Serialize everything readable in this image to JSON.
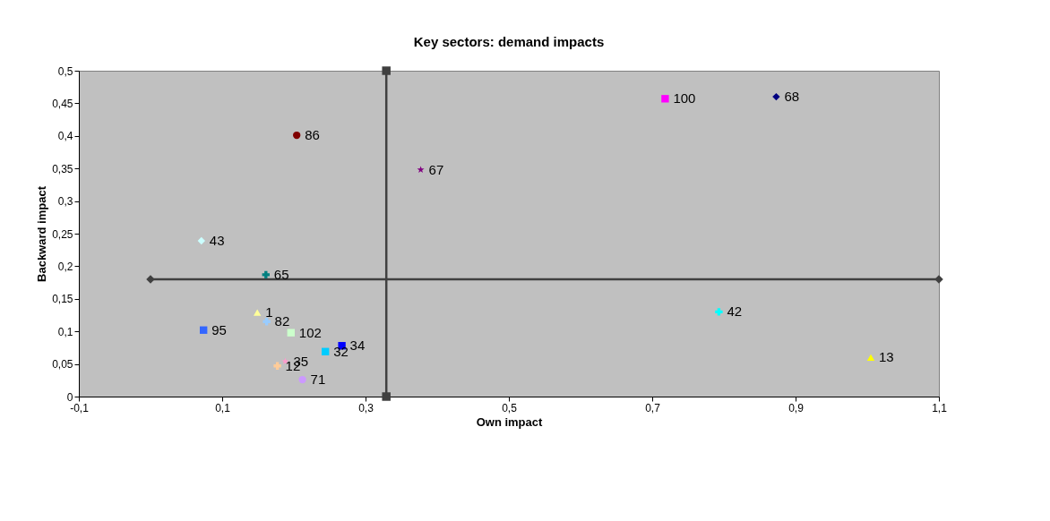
{
  "chart_data": {
    "type": "scatter",
    "title": "Key sectors: demand impacts",
    "xlabel": "Own impact",
    "ylabel": "Backward impact",
    "xlim": [
      -0.1,
      1.1
    ],
    "ylim": [
      0,
      0.5
    ],
    "xticks": [
      {
        "value": -0.1,
        "label": "-0,1"
      },
      {
        "value": 0.1,
        "label": "0,1"
      },
      {
        "value": 0.3,
        "label": "0,3"
      },
      {
        "value": 0.5,
        "label": "0,5"
      },
      {
        "value": 0.7,
        "label": "0,7"
      },
      {
        "value": 0.9,
        "label": "0,9"
      },
      {
        "value": 1.1,
        "label": "1,1"
      }
    ],
    "yticks": [
      0,
      {
        "value": 0.05,
        "label": "0,05"
      },
      {
        "value": 0.1,
        "label": "0,1"
      },
      {
        "value": 0.15,
        "label": "0,15"
      },
      {
        "value": 0.2,
        "label": "0,2"
      },
      {
        "value": 0.25,
        "label": "0,25"
      },
      {
        "value": 0.3,
        "label": "0,3"
      },
      {
        "value": 0.35,
        "label": "0,35"
      },
      {
        "value": 0.4,
        "label": "0,4"
      },
      {
        "value": 0.45,
        "label": "0,45"
      },
      {
        "value": 0.5,
        "label": "0,5"
      }
    ],
    "grid": false,
    "series": [
      {
        "type": "line",
        "x": [
          0.329,
          0.329
        ],
        "values": [
          0,
          0.5
        ],
        "color": "#404040",
        "marker": "square"
      },
      {
        "type": "line",
        "x": [
          0,
          1.1
        ],
        "values": [
          0.18,
          0.18
        ],
        "color": "#404040",
        "marker": "diamond"
      },
      {
        "name": "100",
        "x": [
          0.718
        ],
        "values": [
          0.457
        ],
        "color": "#ff00ff",
        "marker": "square"
      },
      {
        "name": "68",
        "x": [
          0.873
        ],
        "values": [
          0.46
        ],
        "color": "#000080",
        "marker": "diamond"
      },
      {
        "name": "86",
        "x": [
          0.204
        ],
        "values": [
          0.401
        ],
        "color": "#800000",
        "marker": "circle"
      },
      {
        "name": "67",
        "x": [
          0.377
        ],
        "values": [
          0.348
        ],
        "color": "#800080",
        "marker": "star"
      },
      {
        "name": "43",
        "x": [
          0.071
        ],
        "values": [
          0.239
        ],
        "color": "#ccffff",
        "marker": "diamond"
      },
      {
        "name": "65",
        "x": [
          0.161
        ],
        "values": [
          0.187
        ],
        "color": "#008080",
        "marker": "cross"
      },
      {
        "name": "42",
        "x": [
          0.793
        ],
        "values": [
          0.13
        ],
        "color": "#00ffff",
        "marker": "cross"
      },
      {
        "name": "13",
        "x": [
          1.005
        ],
        "values": [
          0.06
        ],
        "color": "#ffff00",
        "marker": "triangle"
      },
      {
        "name": "1",
        "x": [
          0.149
        ],
        "values": [
          0.129
        ],
        "color": "#ffff99",
        "marker": "triangle"
      },
      {
        "name": "82",
        "x": [
          0.162
        ],
        "values": [
          0.115
        ],
        "color": "#99ccff",
        "marker": "cross"
      },
      {
        "name": "95",
        "x": [
          0.074
        ],
        "values": [
          0.102
        ],
        "color": "#3366ff",
        "marker": "square"
      },
      {
        "name": "102",
        "x": [
          0.196
        ],
        "values": [
          0.098
        ],
        "color": "#ccffcc",
        "marker": "square"
      },
      {
        "name": "34",
        "x": [
          0.267
        ],
        "values": [
          0.078
        ],
        "color": "#0000ff",
        "marker": "square"
      },
      {
        "name": "32",
        "x": [
          0.244
        ],
        "values": [
          0.069
        ],
        "color": "#00ccff",
        "marker": "square"
      },
      {
        "name": "35",
        "x": [
          0.188
        ],
        "values": [
          0.054
        ],
        "color": "#ff99cc",
        "marker": "star"
      },
      {
        "name": "12",
        "x": [
          0.177
        ],
        "values": [
          0.047
        ],
        "color": "#ffcc99",
        "marker": "cross"
      },
      {
        "name": "71",
        "x": [
          0.212
        ],
        "values": [
          0.026
        ],
        "color": "#cc99ff",
        "marker": "circle"
      }
    ]
  }
}
